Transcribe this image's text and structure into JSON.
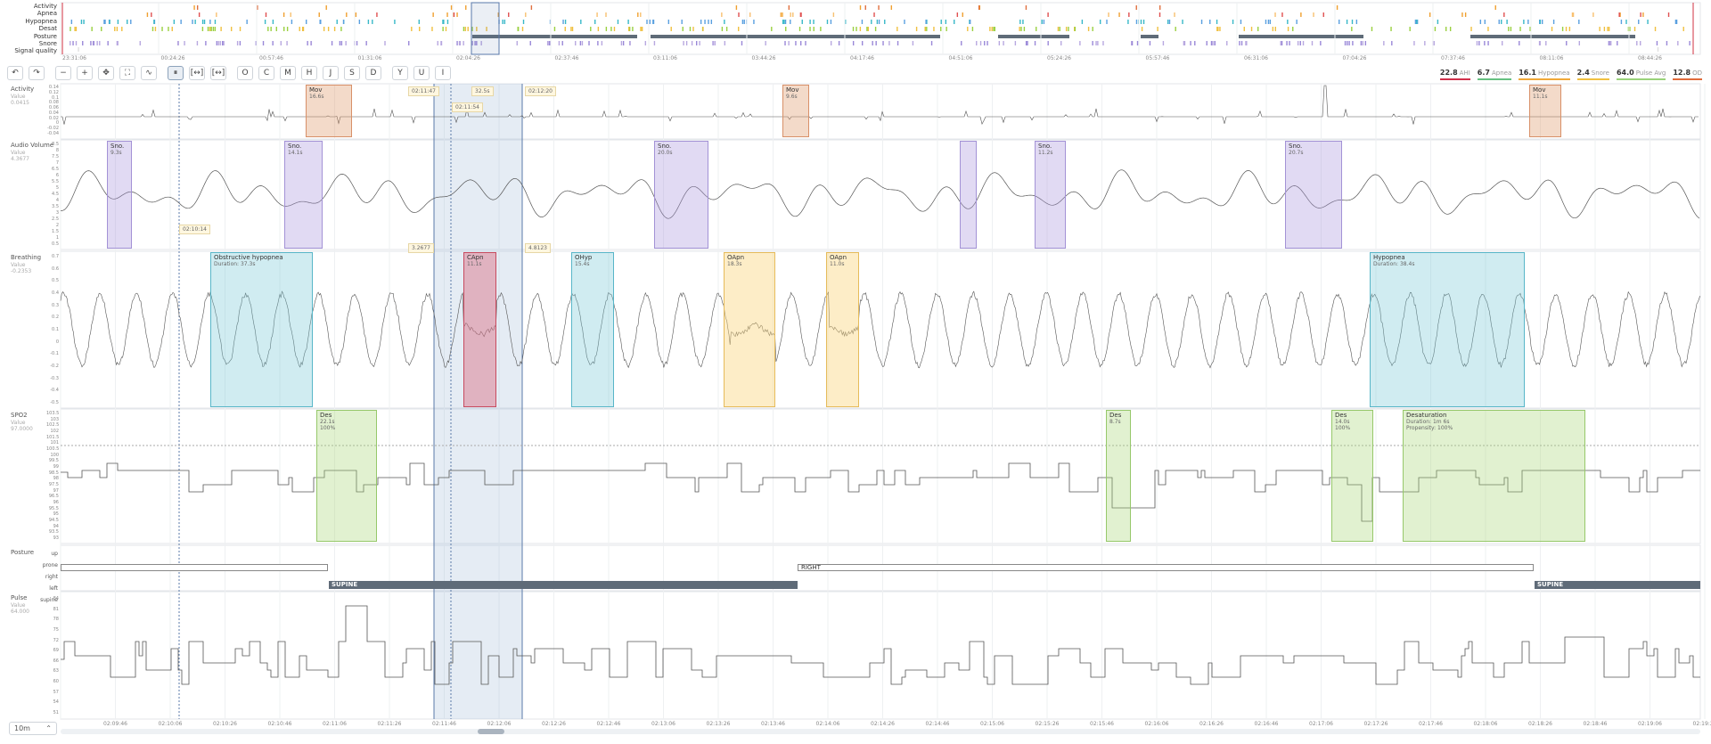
{
  "overview": {
    "rows": [
      "Activity",
      "Apnea",
      "Hypopnea",
      "Desat",
      "Posture",
      "Snore",
      "Signal quality"
    ],
    "time_ticks": [
      "23:31:06",
      "00:24:26",
      "00:57:46",
      "01:31:06",
      "02:04:26",
      "02:37:46",
      "03:11:06",
      "03:44:26",
      "04:17:46",
      "04:51:06",
      "05:24:26",
      "05:57:46",
      "06:31:06",
      "07:04:26",
      "07:37:46",
      "08:11:06",
      "08:44:26"
    ]
  },
  "toolbar": {
    "buttons": [
      "↶",
      "↷",
      "−",
      "+",
      "✥",
      "⛶",
      "∿",
      "⏸",
      "[↔]",
      "[↔]",
      "O",
      "C",
      "M",
      "H",
      "J",
      "S",
      "D",
      "Y",
      "U",
      "I"
    ]
  },
  "stats": [
    {
      "value": "22.8",
      "label": "AHI",
      "color": "#d0304a"
    },
    {
      "value": "6.7",
      "label": "Apnea",
      "color": "#66c080"
    },
    {
      "value": "16.1",
      "label": "Hypopnea",
      "color": "#f0a838"
    },
    {
      "value": "2.4",
      "label": "Snore",
      "color": "#f0c040"
    },
    {
      "value": "64.0",
      "label": "Pulse Avg",
      "color": "#9ad27a"
    },
    {
      "value": "12.8",
      "label": "OD",
      "color": "#e06a3a"
    }
  ],
  "selection": {
    "start": "02:11:47",
    "mid": "02:11:54",
    "end": "02:12:20",
    "duration": "32.5s",
    "left_val": "3.2677",
    "right_val": "4.8123",
    "cursor": "02:10:14"
  },
  "channels": {
    "activity": {
      "name": "Activity",
      "value_label": "Value",
      "value": "0.0415",
      "yticks": [
        "0.14",
        "0.12",
        "0.1",
        "0.08",
        "0.06",
        "0.04",
        "0.02",
        "0",
        "-0.02",
        "-0.04"
      ]
    },
    "audio": {
      "name": "Audio Volume",
      "value_label": "Value",
      "value": "4.3677",
      "yticks": [
        "8.5",
        "8",
        "7.5",
        "7",
        "6.5",
        "6",
        "5.5",
        "5",
        "4.5",
        "4",
        "3.5",
        "3",
        "2.5",
        "2",
        "1.5",
        "1",
        "0.5"
      ]
    },
    "breathing": {
      "name": "Breathing",
      "value_label": "Value",
      "value": "-0.2353",
      "yticks": [
        "0.7",
        "0.6",
        "0.5",
        "0.4",
        "0.3",
        "0.2",
        "0.1",
        "0",
        "-0.1",
        "-0.2",
        "-0.3",
        "-0.4",
        "-0.5"
      ]
    },
    "spo2": {
      "name": "SPO2",
      "value_label": "Value",
      "value": "97.0000",
      "yticks": [
        "103.5",
        "103",
        "102.5",
        "102",
        "101.5",
        "101",
        "100.5",
        "100",
        "99.5",
        "99",
        "98.5",
        "98",
        "97.5",
        "97",
        "96.5",
        "96",
        "95.5",
        "95",
        "94.5",
        "94",
        "93.5",
        "93"
      ]
    },
    "posture": {
      "name": "Posture",
      "levels": [
        "up",
        "prone",
        "right",
        "left",
        "supine"
      ]
    },
    "pulse": {
      "name": "Pulse",
      "value_label": "Value",
      "value": "64.000",
      "yticks": [
        "84",
        "81",
        "78",
        "75",
        "72",
        "69",
        "66",
        "63",
        "60",
        "57",
        "54",
        "51"
      ]
    }
  },
  "events": {
    "activity": [
      {
        "title": "Mov",
        "sub": "16.6s"
      },
      {
        "title": "Mov",
        "sub": "9.6s"
      },
      {
        "title": "Mov",
        "sub": "11.1s"
      }
    ],
    "audio": [
      {
        "title": "Sno.",
        "sub": "9.3s"
      },
      {
        "title": "Sno.",
        "sub": "14.1s"
      },
      {
        "title": "Sno.",
        "sub": "20.0s"
      },
      {
        "title": "",
        "sub": ""
      },
      {
        "title": "Sno.",
        "sub": "11.2s"
      },
      {
        "title": "Sno.",
        "sub": "20.7s"
      }
    ],
    "breathing": [
      {
        "title": "Obstructive hypopnea",
        "sub": "Duration: 37.3s"
      },
      {
        "title": "CApn",
        "sub": "11.1s"
      },
      {
        "title": "OHyp",
        "sub": "15.4s"
      },
      {
        "title": "OApn",
        "sub": "18.3s"
      },
      {
        "title": "OApn",
        "sub": "11.0s"
      },
      {
        "title": "Hypopnea",
        "sub": "Duration: 38.4s"
      }
    ],
    "spo2": [
      {
        "title": "Des",
        "sub": "22.1s",
        "sub2": "100%"
      },
      {
        "title": "Des",
        "sub": "8.7s",
        "sub2": ""
      },
      {
        "title": "Des",
        "sub": "14.0s",
        "sub2": "100%"
      },
      {
        "title": "Desaturation",
        "sub": "Duration: 1m 6s",
        "sub2": "Propensity: 100%"
      }
    ],
    "posture": [
      {
        "label": "RIGHT"
      },
      {
        "label": "SUPINE"
      },
      {
        "label": "SUPINE"
      }
    ]
  },
  "time_axis": [
    "02:09:46",
    "02:10:06",
    "02:10:26",
    "02:10:46",
    "02:11:06",
    "02:11:26",
    "02:11:46",
    "02:12:06",
    "02:12:26",
    "02:12:46",
    "02:13:06",
    "02:13:26",
    "02:13:46",
    "02:14:06",
    "02:14:26",
    "02:14:46",
    "02:15:06",
    "02:15:26",
    "02:15:46",
    "02:16:06",
    "02:16:26",
    "02:16:46",
    "02:17:06",
    "02:17:26",
    "02:17:46",
    "02:18:06",
    "02:18:26",
    "02:18:46",
    "02:19:06",
    "02:19:26"
  ],
  "zoom": {
    "value": "10m"
  }
}
